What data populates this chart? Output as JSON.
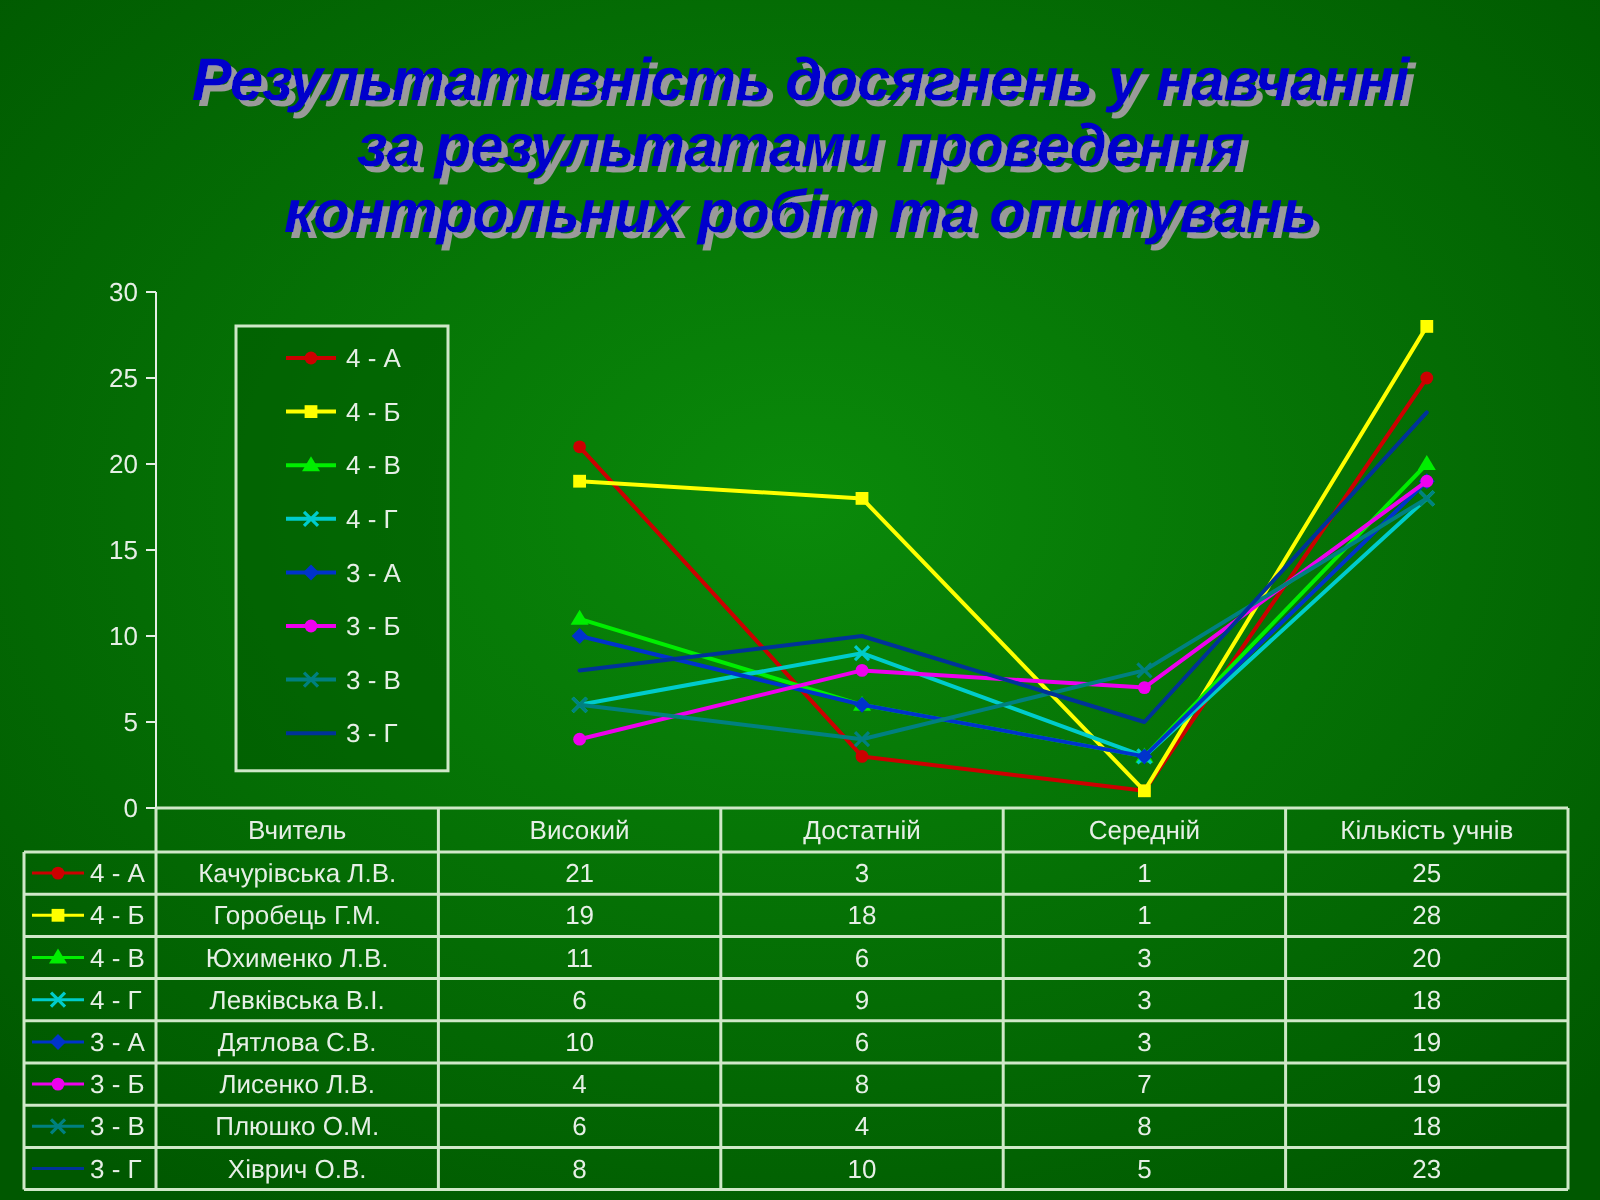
{
  "chart_data": {
    "type": "line",
    "title": "Результативність досягнень у навчанні\nза результатами проведення\nконтрольних робіт та опитувань",
    "categories": [
      "Вчитель",
      "Високий",
      "Достатній",
      "Середній",
      "Кількість учнів"
    ],
    "ylim": [
      0,
      30
    ],
    "yticks": [
      0,
      5,
      10,
      15,
      20,
      25,
      30
    ],
    "legend": "top left",
    "series": [
      {
        "name": "4 - А",
        "color": "#cc0000",
        "marker": "circle",
        "values": [
          null,
          21,
          3,
          1,
          25
        ],
        "value_labels": [
          "Качурівська Л.В.",
          "21",
          "3",
          "1",
          "25"
        ]
      },
      {
        "name": "4 - Б",
        "color": "#ffff00",
        "marker": "square",
        "values": [
          null,
          19,
          18,
          1,
          28
        ],
        "value_labels": [
          "Горобець Г.М.",
          "19",
          "18",
          "1",
          "28"
        ]
      },
      {
        "name": "4 - В",
        "color": "#00ee00",
        "marker": "triangle",
        "values": [
          null,
          11,
          6,
          3,
          20
        ],
        "value_labels": [
          "Юхименко Л.В.",
          "11",
          "6",
          "3",
          "20"
        ]
      },
      {
        "name": "4 - Г",
        "color": "#00cccc",
        "marker": "cross",
        "values": [
          null,
          6,
          9,
          3,
          18
        ],
        "value_labels": [
          "Левківська В.І.",
          "6",
          "9",
          "3",
          "18"
        ]
      },
      {
        "name": "3 - А",
        "color": "#0033cc",
        "marker": "diamond",
        "values": [
          null,
          10,
          6,
          3,
          19
        ],
        "value_labels": [
          "Дятлова С.В.",
          "10",
          "6",
          "3",
          "19"
        ]
      },
      {
        "name": "3 - Б",
        "color": "#ee00ee",
        "marker": "circle",
        "values": [
          null,
          4,
          8,
          7,
          19
        ],
        "value_labels": [
          "Лисенко Л.В.",
          "4",
          "8",
          "7",
          "19"
        ]
      },
      {
        "name": "3 - В",
        "color": "#008080",
        "marker": "cross",
        "values": [
          null,
          6,
          4,
          8,
          18
        ],
        "value_labels": [
          "Плюшко О.М.",
          "6",
          "4",
          "8",
          "18"
        ]
      },
      {
        "name": "3 - Г",
        "color": "#003399",
        "marker": "none",
        "values": [
          null,
          8,
          10,
          5,
          23
        ],
        "value_labels": [
          "Хіврич О.В.",
          "8",
          "10",
          "5",
          "23"
        ]
      }
    ]
  }
}
